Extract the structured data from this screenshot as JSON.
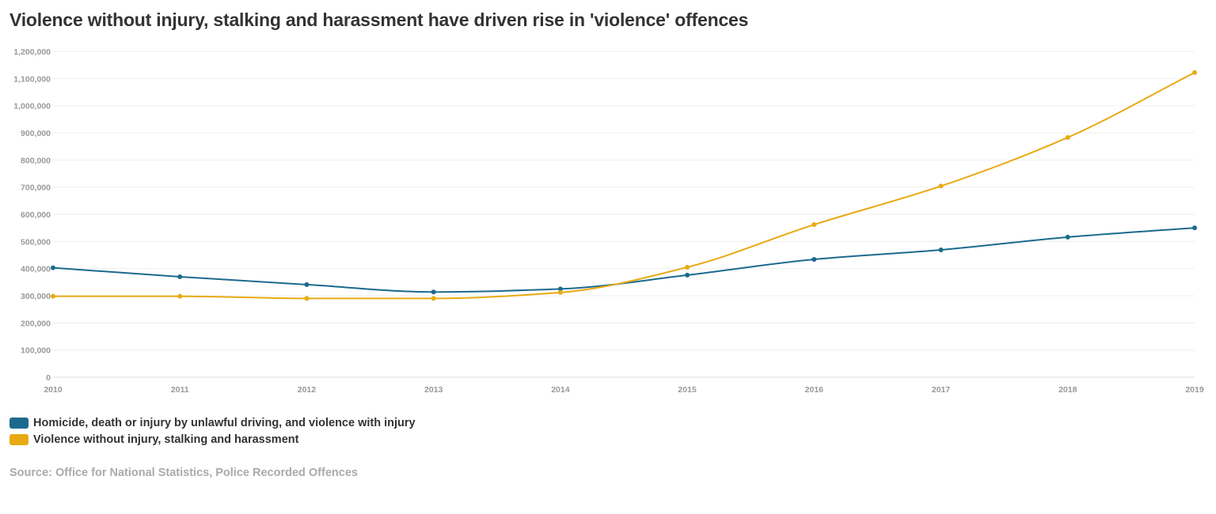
{
  "chart_data": {
    "type": "line",
    "title": "Violence without injury, stalking and harassment have driven rise in 'violence' offences",
    "x": [
      "2010",
      "2011",
      "2012",
      "2013",
      "2014",
      "2015",
      "2016",
      "2017",
      "2018",
      "2019"
    ],
    "ylim": [
      0,
      1200000
    ],
    "yticks": [
      0,
      100000,
      200000,
      300000,
      400000,
      500000,
      600000,
      700000,
      800000,
      900000,
      1000000,
      1100000,
      1200000
    ],
    "ytick_labels": [
      "0",
      "100,000",
      "200,000",
      "300,000",
      "400,000",
      "500,000",
      "600,000",
      "700,000",
      "800,000",
      "900,000",
      "1,000,000",
      "1,100,000",
      "1,200,000"
    ],
    "grid": true,
    "legend_position": "bottom-left",
    "series": [
      {
        "name": "Homicide, death or injury by unlawful driving, and violence with injury",
        "color": "#1b6a8e",
        "values": [
          403000,
          370000,
          341000,
          314000,
          325000,
          376000,
          434000,
          469000,
          516000,
          550000
        ]
      },
      {
        "name": "Violence without injury, stalking and harassment",
        "color": "#e8aa13",
        "values": [
          298000,
          298000,
          290000,
          290000,
          312000,
          405000,
          562000,
          704000,
          883000,
          1122000
        ]
      }
    ],
    "source": "Source: Office for National Statistics, Police Recorded Offences"
  }
}
